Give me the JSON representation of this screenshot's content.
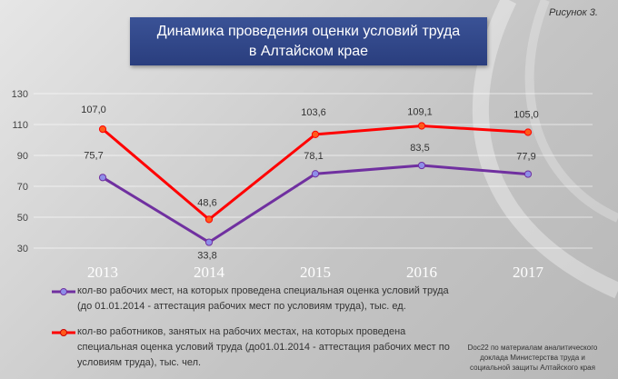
{
  "figure_label": "Рисунок  3.",
  "title": {
    "line1": "Динамика проведения оценки условий труда",
    "line2": "в Алтайском крае"
  },
  "source": {
    "line1": "Doc22 по материалам аналитического",
    "line2": "доклада Министерства труда и",
    "line3": "социальной защиты Алтайского края"
  },
  "colors": {
    "series1": "#7030a0",
    "series2": "#ff0000",
    "marker1": "#8e8ee8",
    "marker2": "#ff5a1a",
    "title_bg": "#2e4488"
  },
  "chart_data": {
    "type": "line",
    "categories": [
      "2013",
      "2014",
      "2015",
      "2016",
      "2017"
    ],
    "ylim": [
      30,
      130
    ],
    "yticks": [
      "30",
      "50",
      "70",
      "90",
      "110",
      "130"
    ],
    "grid": true,
    "legend_position": "bottom-left",
    "series": [
      {
        "name": "кол-во рабочих мест, на которых проведена специальная оценка условий труда (до 01.01.2014 - аттестация рабочих мест по условиям труда), тыс. ед.",
        "values": [
          75.7,
          33.8,
          78.1,
          83.5,
          77.9
        ],
        "labels": [
          "75,7",
          "33,8",
          "78,1",
          "83,5",
          "77,9"
        ]
      },
      {
        "name": "кол-во работников, занятых на  рабочих местах, на которых проведена специальная оценка условий труда (до01.01.2014 - аттестация рабочих мест по условиям труда), тыс. чел.",
        "values": [
          107.0,
          48.6,
          103.6,
          109.1,
          105.0
        ],
        "labels": [
          "107,0",
          "48,6",
          "103,6",
          "109,1",
          "105,0"
        ]
      }
    ]
  }
}
